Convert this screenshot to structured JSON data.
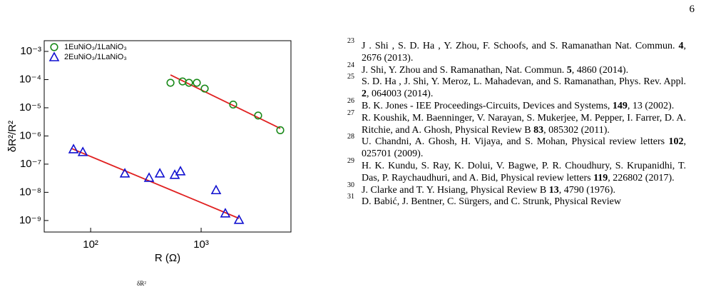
{
  "page_number": "6",
  "chart_data": {
    "type": "scatter",
    "log_x": true,
    "log_y": true,
    "xlabel": "R (Ω)",
    "ylabel": "δR²/R²",
    "xlim": [
      38,
      6500
    ],
    "ylim": [
      3.9e-10,
      0.0024
    ],
    "xticks": [
      {
        "value": 100,
        "label": "10²"
      },
      {
        "value": 1000,
        "label": "10³"
      }
    ],
    "yticks": [
      {
        "value": 1e-09,
        "label": "10⁻⁹"
      },
      {
        "value": 1e-08,
        "label": "10⁻⁸"
      },
      {
        "value": 1e-07,
        "label": "10⁻⁷"
      },
      {
        "value": 1e-06,
        "label": "10⁻⁶"
      },
      {
        "value": 1e-05,
        "label": "10⁻⁵"
      },
      {
        "value": 0.0001,
        "label": "10⁻⁴"
      },
      {
        "value": 0.001,
        "label": "10⁻³"
      }
    ],
    "legend": "upper left",
    "series": [
      {
        "name": "1EuNiO₃/1LaNiO₃",
        "color": "#1a8a1a",
        "marker": "circle",
        "x": [
          528,
          679,
          776,
          914,
          1077,
          1950,
          3280,
          5200
        ],
        "values": [
          7.7e-05,
          8.6e-05,
          7.7e-05,
          7.7e-05,
          4.8e-05,
          1.3e-05,
          5.3e-06,
          1.6e-06
        ]
      },
      {
        "name": "2EuNiO₃/1LaNiO₃",
        "color": "#1010d0",
        "marker": "triangle",
        "x": [
          70,
          85,
          204,
          338,
          423,
          577,
          650,
          1365,
          1655,
          2200
        ],
        "values": [
          3.4e-07,
          2.7e-07,
          4.7e-08,
          3.3e-08,
          4.7e-08,
          4.2e-08,
          5.6e-08,
          1.2e-08,
          1.8e-09,
          1.06e-09
        ]
      }
    ],
    "fits": [
      {
        "color": "#e02020",
        "x": [
          528,
          5200
        ],
        "values": [
          0.000146,
          1.85e-06
        ]
      },
      {
        "color": "#e02020",
        "x": [
          67,
          2200
        ],
        "values": [
          3.6e-07,
          1.19e-09
        ]
      }
    ]
  },
  "caption_fragment": "δR²",
  "references": [
    {
      "number": "23",
      "parts": [
        {
          "text": "J . Shi , S. D. Ha , Y. Zhou, F. Schoofs, and S. Ramanathan Nat. Commun. "
        },
        {
          "text": "4",
          "bold": true
        },
        {
          "text": ", 2676 (2013)."
        }
      ]
    },
    {
      "number": "24",
      "parts": [
        {
          "text": "J. Shi, Y. Zhou and S. Ramanathan, Nat. Commun. "
        },
        {
          "text": "5",
          "bold": true
        },
        {
          "text": ", 4860 (2014)."
        }
      ]
    },
    {
      "number": "25",
      "parts": [
        {
          "text": "S. D. Ha , J. Shi, Y. Meroz, L. Mahadevan, and S. Ramanathan, Phys. Rev. Appl. "
        },
        {
          "text": "2",
          "bold": true
        },
        {
          "text": ", 064003 (2014)."
        }
      ]
    },
    {
      "number": "26",
      "parts": [
        {
          "text": "B. K. Jones - IEE Proceedings-Circuits, Devices and Systems, "
        },
        {
          "text": "149",
          "bold": true
        },
        {
          "text": ", 13 (2002)."
        }
      ]
    },
    {
      "number": "27",
      "parts": [
        {
          "text": "R. Koushik, M. Baenninger, V. Narayan, S. Mukerjee, M. Pepper, I. Farrer, D. A. Ritchie,  and A. Ghosh, Physical Review B "
        },
        {
          "text": "83",
          "bold": true
        },
        {
          "text": ", 085302 (2011)."
        }
      ]
    },
    {
      "number": "28",
      "parts": [
        {
          "text": "U. Chandni, A. Ghosh, H. Vijaya,  and S. Mohan, Physical review letters "
        },
        {
          "text": "102",
          "bold": true
        },
        {
          "text": ", 025701 (2009)."
        }
      ]
    },
    {
      "number": "29",
      "parts": [
        {
          "text": "H. K. Kundu, S. Ray, K. Dolui, V. Bagwe, P. R. Choudhury, S. Krupanidhi, T. Das, P. Raychaudhuri,  and A. Bid, Physical review letters "
        },
        {
          "text": "119",
          "bold": true
        },
        {
          "text": ", 226802 (2017)."
        }
      ]
    },
    {
      "number": "30",
      "parts": [
        {
          "text": "J. Clarke and T. Y. Hsiang, Physical Review B "
        },
        {
          "text": "13",
          "bold": true
        },
        {
          "text": ", 4790 (1976)."
        }
      ]
    },
    {
      "number": "31",
      "parts": [
        {
          "text": "D. Babić, J. Bentner, C. Sürgers,  and C. Strunk, Physical Review"
        }
      ]
    }
  ]
}
